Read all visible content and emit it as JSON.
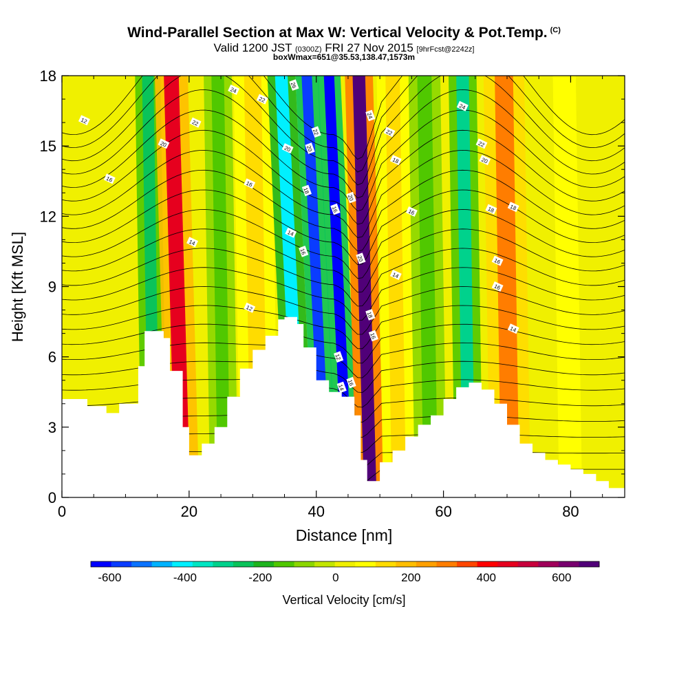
{
  "header": {
    "title": "Wind-Parallel Section at Max W: Vertical Velocity & Pot.Temp.",
    "copyright": "(C)",
    "valid_main": "Valid 1200 JST",
    "valid_zulu": "(0300Z)",
    "valid_date": "FRI 27 Nov 2015",
    "forecast": "[9hrFcst@2242z]",
    "box_info": "boxWmax=651@35.53,138.47,1573m"
  },
  "chart_data": {
    "type": "heatmap",
    "title": "Wind-Parallel Section at Max W: Vertical Velocity & Pot.Temp.",
    "xlabel": "Distance [nm]",
    "ylabel": "Height [Kft MSL]",
    "xlim": [
      0,
      88.5
    ],
    "ylim": [
      0,
      18
    ],
    "x_ticks": [
      "0",
      "20",
      "40",
      "60",
      "80"
    ],
    "y_ticks": [
      "0",
      "3",
      "6",
      "9",
      "12",
      "15",
      "18"
    ],
    "filled_field": "Vertical Velocity",
    "contour_field": "Potential Temperature",
    "contour_labels": [
      "12",
      "14",
      "16",
      "18",
      "20",
      "22",
      "24",
      "26",
      "28"
    ],
    "terrain_profile": {
      "x": [
        0,
        4,
        7,
        9,
        12,
        13,
        16,
        17,
        19,
        20,
        22,
        24,
        26,
        28,
        30,
        32,
        34,
        35,
        37,
        38,
        40,
        42,
        44,
        46,
        47,
        48,
        50,
        52,
        54,
        56,
        58,
        60,
        62,
        64,
        66,
        68,
        70,
        72,
        74,
        76,
        78,
        80,
        82,
        84,
        86,
        88.5
      ],
      "y": [
        4.2,
        3.9,
        3.6,
        4.0,
        5.6,
        7.1,
        6.8,
        5.4,
        3.0,
        1.8,
        2.3,
        3.0,
        4.3,
        5.5,
        6.3,
        6.9,
        7.6,
        7.7,
        7.4,
        6.4,
        5.0,
        4.5,
        4.3,
        3.5,
        1.6,
        0.7,
        1.5,
        2.0,
        2.6,
        3.1,
        3.5,
        4.2,
        4.7,
        4.9,
        4.6,
        4.0,
        3.1,
        2.3,
        1.9,
        1.6,
        1.4,
        1.2,
        1.0,
        0.7,
        0.4,
        0.3
      ]
    },
    "velocity_bands": [
      {
        "x": 14.5,
        "w": 2.0,
        "value": -250
      },
      {
        "x": 19.0,
        "w": 2.6,
        "value": 450
      },
      {
        "x": 25.5,
        "w": 2.2,
        "value": -150
      },
      {
        "x": 31.0,
        "w": 3.0,
        "value": 120
      },
      {
        "x": 37.5,
        "w": 2.2,
        "value": -420
      },
      {
        "x": 41.5,
        "w": 1.8,
        "value": -560
      },
      {
        "x": 45.0,
        "w": 1.8,
        "value": -600
      },
      {
        "x": 48.5,
        "w": 2.2,
        "value": 651
      },
      {
        "x": 53.0,
        "w": 2.5,
        "value": 150
      },
      {
        "x": 58.0,
        "w": 2.5,
        "value": -150
      },
      {
        "x": 64.0,
        "w": 2.2,
        "value": -300
      },
      {
        "x": 70.5,
        "w": 3.2,
        "value": 320
      },
      {
        "x": 80.0,
        "w": 4.0,
        "value": 60
      }
    ],
    "colorbar": {
      "label": "Vertical Velocity [cm/s]",
      "ticks": [
        "-600",
        "-400",
        "-200",
        "0",
        "200",
        "400",
        "600"
      ],
      "range": [
        -650,
        700
      ],
      "colors": [
        "#0000ff",
        "#0a3cff",
        "#0a73ff",
        "#00b3ff",
        "#00f0ff",
        "#00e6c3",
        "#00d28c",
        "#0ac35a",
        "#1eb41e",
        "#50c800",
        "#8cd700",
        "#c3e600",
        "#f0f000",
        "#ffff00",
        "#ffdc00",
        "#ffbe00",
        "#ffa000",
        "#ff7d00",
        "#ff4600",
        "#ff0000",
        "#e6001e",
        "#c8003c",
        "#a0005a",
        "#78006e",
        "#500078"
      ]
    }
  }
}
